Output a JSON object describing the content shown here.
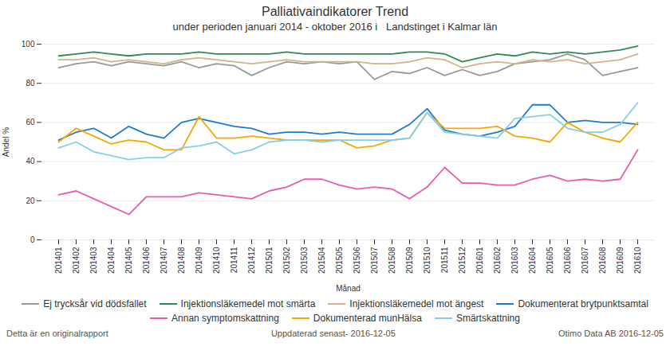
{
  "chart_data": {
    "type": "line",
    "title": "Palliativaindikatorer Trend",
    "subtitle": "under perioden januari 2014 - oktober 2016 i   Landstinget i Kalmar län",
    "x_label": "Månad",
    "y_label": "Andel %",
    "annotations": [
      "Detta är en originalrapport",
      "Uppdaterad senast- 2016-12-05",
      "Otimo Data AB 2016-12-05"
    ],
    "categories": [
      "201401",
      "201402",
      "201403",
      "201404",
      "201405",
      "201406",
      "201407",
      "201408",
      "201409",
      "201410",
      "201411",
      "201412",
      "201501",
      "201502",
      "201503",
      "201504",
      "201505",
      "201506",
      "201507",
      "201508",
      "201509",
      "201510",
      "201511",
      "201512",
      "201601",
      "201602",
      "201603",
      "201604",
      "201605",
      "201606",
      "201607",
      "201608",
      "201609",
      "201610"
    ],
    "series": [
      {
        "name": "Ej trycksår vid dödsfallet",
        "color": "#999999",
        "values": [
          88,
          90,
          91,
          89,
          91,
          90,
          89,
          91,
          88,
          90,
          89,
          84,
          88,
          91,
          90,
          91,
          90,
          91,
          82,
          86,
          85,
          88,
          84,
          87,
          84,
          86,
          90,
          91,
          92,
          95,
          92,
          84,
          86,
          88
        ]
      },
      {
        "name": "Injektionsläkemedel mot smärta",
        "color": "#2e8b57",
        "values": [
          94,
          95,
          96,
          95,
          94,
          95,
          95,
          95,
          96,
          95,
          95,
          95,
          95,
          96,
          95,
          95,
          95,
          95,
          95,
          95,
          96,
          96,
          95,
          91,
          93,
          95,
          94,
          96,
          95,
          96,
          95,
          96,
          97,
          99
        ]
      },
      {
        "name": "Injektionsläkemedel mot ängest",
        "color": "#d2b48c",
        "values": [
          92,
          92,
          93,
          91,
          92,
          91,
          90,
          92,
          93,
          92,
          91,
          90,
          91,
          92,
          91,
          91,
          91,
          91,
          90,
          90,
          91,
          93,
          92,
          88,
          90,
          91,
          90,
          92,
          91,
          92,
          90,
          91,
          92,
          95
        ]
      },
      {
        "name": "Dokumenterat brytpunktsamtal",
        "color": "#1e7bcd",
        "values": [
          51,
          55,
          57,
          52,
          58,
          54,
          52,
          60,
          62,
          60,
          58,
          57,
          54,
          55,
          55,
          54,
          55,
          54,
          54,
          54,
          59,
          67,
          56,
          54,
          53,
          55,
          58,
          69,
          69,
          60,
          61,
          60,
          60,
          59
        ]
      },
      {
        "name": "Annan symptomskattning",
        "color": "#e85cac",
        "values": [
          23,
          25,
          21,
          17,
          13,
          22,
          22,
          22,
          24,
          23,
          22,
          21,
          25,
          27,
          31,
          31,
          28,
          26,
          27,
          26,
          21,
          27,
          37,
          29,
          29,
          28,
          28,
          31,
          33,
          30,
          31,
          30,
          31,
          46
        ]
      },
      {
        "name": "Dokumenterad munHälsa",
        "color": "#f5a800",
        "values": [
          50,
          57,
          53,
          49,
          51,
          50,
          46,
          46,
          63,
          52,
          52,
          53,
          52,
          51,
          51,
          51,
          51,
          47,
          48,
          51,
          52,
          65,
          57,
          57,
          57,
          58,
          53,
          52,
          50,
          60,
          55,
          52,
          50,
          60
        ]
      },
      {
        "name": "Smärtskattning",
        "color": "#87ceeb",
        "values": [
          47,
          50,
          45,
          43,
          41,
          42,
          42,
          47,
          48,
          50,
          44,
          46,
          50,
          51,
          51,
          50,
          51,
          51,
          51,
          51,
          52,
          65,
          55,
          54,
          53,
          52,
          62,
          63,
          64,
          57,
          55,
          55,
          59,
          70
        ]
      }
    ],
    "ylim": [
      0,
      100
    ],
    "yticks": [
      0,
      20,
      40,
      60,
      80,
      100
    ],
    "grid": true,
    "legend": "bottom"
  }
}
